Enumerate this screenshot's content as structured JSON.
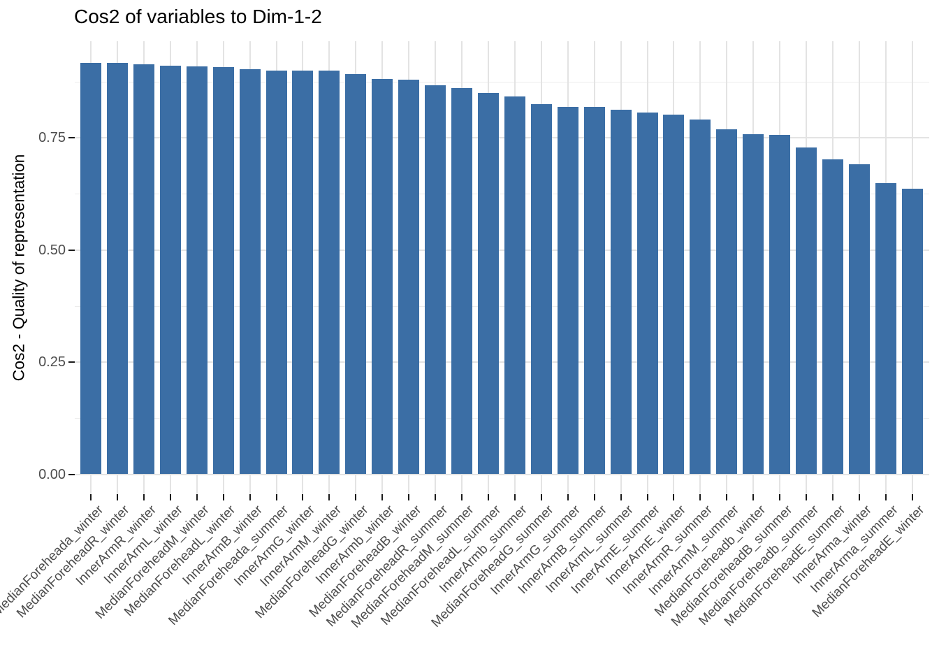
{
  "chart_data": {
    "type": "bar",
    "title": "Cos2 of variables to Dim-1-2",
    "xlabel": "",
    "ylabel": "Cos2 - Quality of representation",
    "legend_position": "none",
    "grid": "horizontal major+minor, vertical major at each category",
    "bar_color": "#3B6EA5",
    "axis_text_color": "#4d4d4d",
    "gridline_color": "#e3e3e3",
    "ylim": [
      -0.046,
      0.964
    ],
    "y_ticks": [
      0,
      0.25,
      0.5,
      0.75
    ],
    "y_tick_labels": [
      "0.00",
      "0.25",
      "0.50",
      "0.75"
    ],
    "y_minor_ticks": [
      0.125,
      0.375,
      0.625,
      0.875
    ],
    "categories": [
      "MedianForeheada_winter",
      "MedianForeheadR_winter",
      "InnerArmR_winter",
      "InnerArmL_winter",
      "MedianForeheadM_winter",
      "MedianForeheadL_winter",
      "InnerArmB_winter",
      "MedianForeheada_summer",
      "InnerArmG_winter",
      "InnerArmM_winter",
      "MedianForeheadG_winter",
      "InnerArmb_winter",
      "MedianForeheadB_winter",
      "MedianForeheadR_summer",
      "MedianForeheadM_summer",
      "MedianForeheadL_summer",
      "InnerArmb_summer",
      "MedianForeheadG_summer",
      "InnerArmG_summer",
      "InnerArmB_summer",
      "InnerArmL_summer",
      "InnerArmE_summer",
      "InnerArmE_winter",
      "InnerArmR_summer",
      "InnerArmM_summer",
      "MedianForeheadb_winter",
      "MedianForeheadB_summer",
      "MedianForeheadb_summer",
      "MedianForeheadE_summer",
      "InnerArma_winter",
      "InnerArma_summer",
      "MedianForeheadE_winter"
    ],
    "values": [
      0.917,
      0.916,
      0.914,
      0.911,
      0.909,
      0.908,
      0.902,
      0.9,
      0.9,
      0.899,
      0.891,
      0.881,
      0.88,
      0.867,
      0.86,
      0.849,
      0.842,
      0.825,
      0.819,
      0.818,
      0.813,
      0.806,
      0.802,
      0.791,
      0.769,
      0.758,
      0.757,
      0.728,
      0.702,
      0.691,
      0.648,
      0.637
    ]
  }
}
